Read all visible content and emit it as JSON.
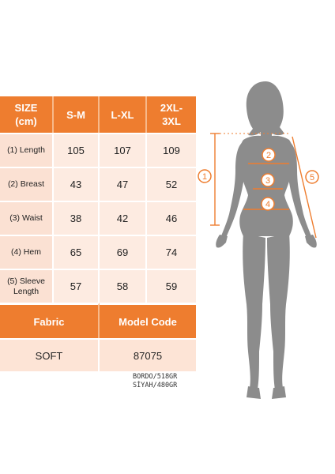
{
  "table": {
    "header": {
      "size": "SIZE\n(cm)",
      "col1": "S-M",
      "col2": "L-XL",
      "col3": "2XL-\n3XL"
    },
    "rows": [
      {
        "label": "(1) Length",
        "v1": "105",
        "v2": "107",
        "v3": "109"
      },
      {
        "label": "(2) Breast",
        "v1": "43",
        "v2": "47",
        "v3": "52"
      },
      {
        "label": "(3) Waist",
        "v1": "38",
        "v2": "42",
        "v3": "46"
      },
      {
        "label": "(4) Hem",
        "v1": "65",
        "v2": "69",
        "v3": "74"
      },
      {
        "label": "(5) Sleeve\nLength",
        "v1": "57",
        "v2": "58",
        "v3": "59"
      }
    ],
    "fabric_header": "Fabric",
    "model_code_header": "Model Code",
    "fabric_value": "SOFT",
    "model_code_value": "87075"
  },
  "weights": {
    "line1": "BORDO/518GR",
    "line2": "SİYAH/480GR"
  },
  "figure": {
    "markers": {
      "m1": "1",
      "m2": "2",
      "m3": "3",
      "m4": "4",
      "m5": "5"
    }
  },
  "colors": {
    "accent": "#ee7d2f",
    "cell": "#fde4d6",
    "silhouette": "#8c8c8c"
  }
}
